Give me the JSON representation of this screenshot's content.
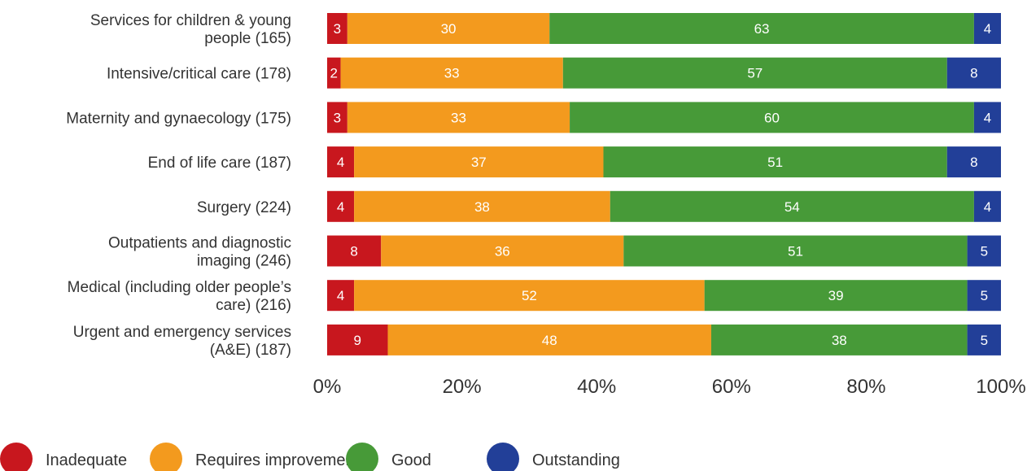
{
  "chart_data": {
    "type": "bar",
    "orientation": "horizontal",
    "stacked": true,
    "categories": [
      [
        "Services for children & young",
        "people (165)"
      ],
      [
        "Intensive/critical care (178)"
      ],
      [
        "Maternity and gynaecology (175)"
      ],
      [
        "End of life care (187)"
      ],
      [
        "Surgery (224)"
      ],
      [
        "Outpatients and diagnostic",
        "imaging (246)"
      ],
      [
        "Medical (including older people’s",
        "care) (216)"
      ],
      [
        "Urgent and emergency services",
        "(A&E) (187)"
      ]
    ],
    "series": [
      {
        "name": "Inadequate",
        "color": "#c8171e",
        "values": [
          3,
          2,
          3,
          4,
          4,
          8,
          4,
          9
        ]
      },
      {
        "name": "Requires improvement",
        "color": "#f39a1e",
        "values": [
          30,
          33,
          33,
          37,
          38,
          36,
          52,
          48
        ]
      },
      {
        "name": "Good",
        "color": "#479a38",
        "values": [
          63,
          57,
          60,
          51,
          54,
          51,
          39,
          38
        ]
      },
      {
        "name": "Outstanding",
        "color": "#223f98",
        "values": [
          4,
          8,
          4,
          8,
          4,
          5,
          5,
          5
        ]
      }
    ],
    "xlim": [
      0,
      100
    ],
    "xticks": [
      "0%",
      "20%",
      "40%",
      "60%",
      "80%",
      "100%"
    ],
    "grid": false,
    "legend": "bottom-left"
  }
}
